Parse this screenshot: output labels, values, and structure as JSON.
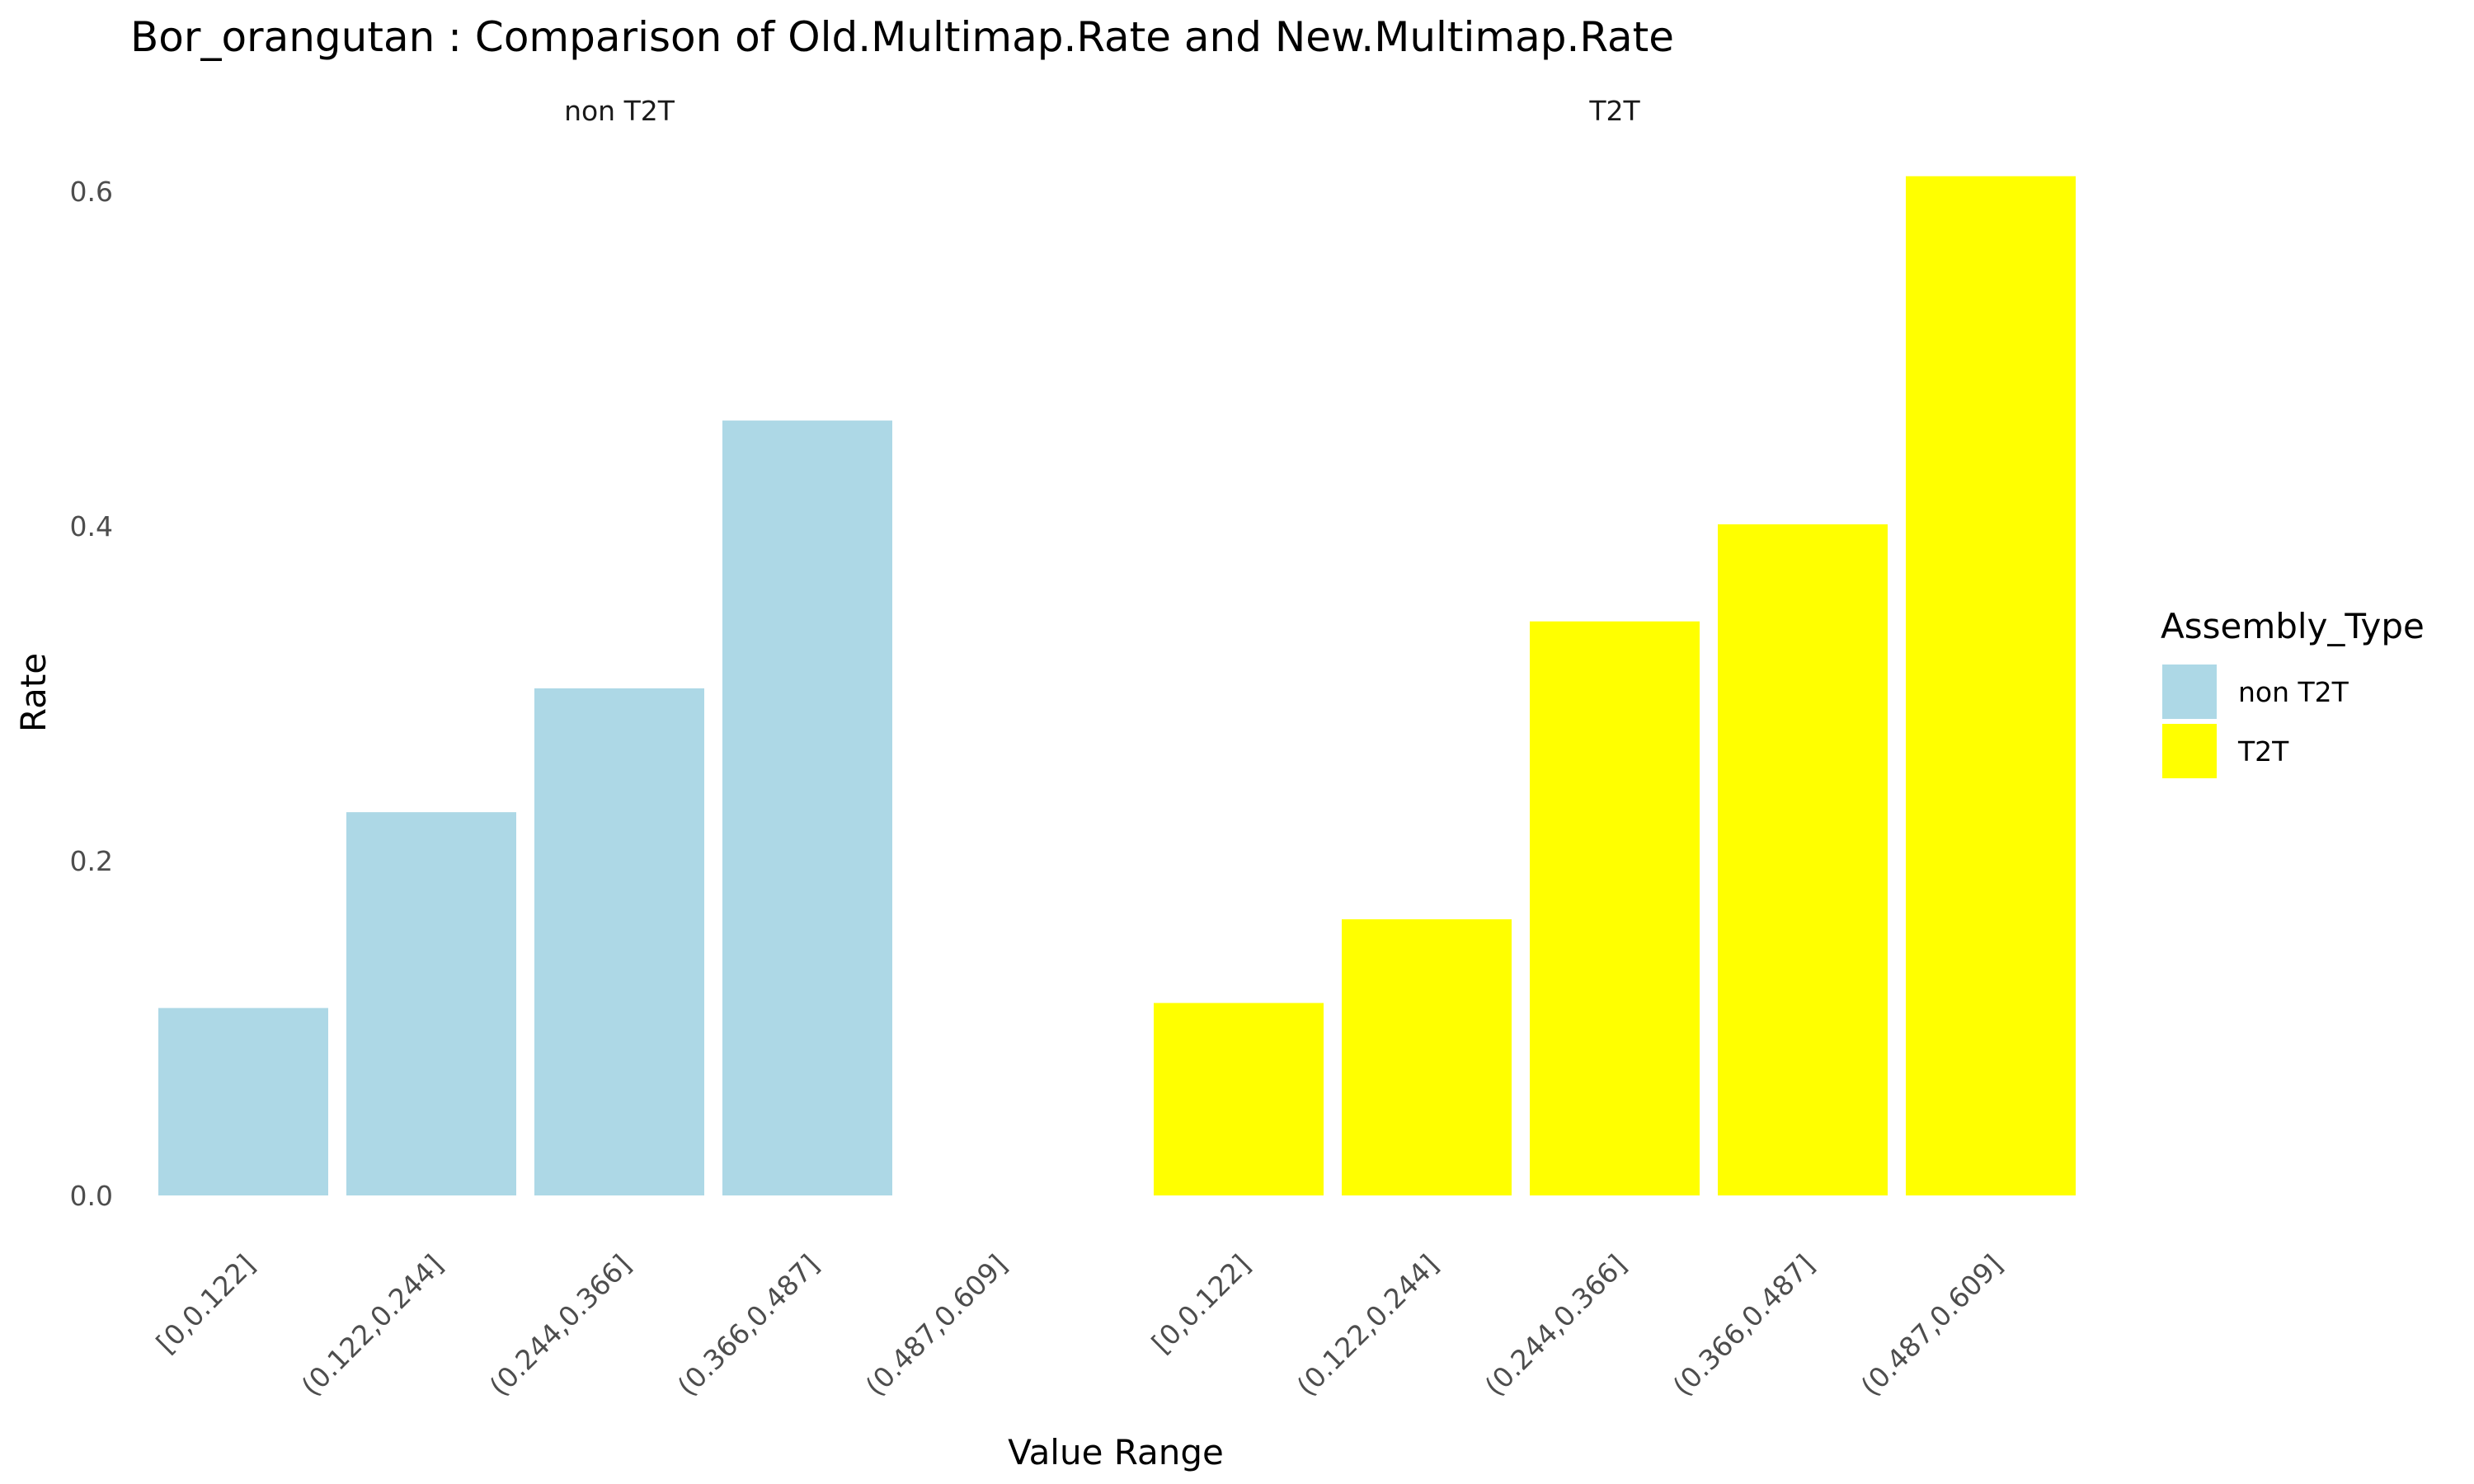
{
  "chart_data": {
    "type": "bar",
    "title": "Bor_orangutan : Comparison of Old.Multimap.Rate and New.Multimap.Rate",
    "xlabel": "Value Range",
    "ylabel": "Rate",
    "ylim": [
      0,
      0.62
    ],
    "yticks": [
      0.0,
      0.2,
      0.4,
      0.6
    ],
    "ytick_labels": [
      "0.0",
      "0.2",
      "0.4",
      "0.6"
    ],
    "categories": [
      "[0,0.122]",
      "(0.122,0.244]",
      "(0.244,0.366]",
      "(0.366,0.487]",
      "(0.487,0.609]"
    ],
    "grid": false,
    "legend": {
      "title": "Assembly_Type",
      "placement": "right",
      "entries": [
        {
          "label": "non T2T",
          "color": "#ADD8E6"
        },
        {
          "label": "T2T",
          "color": "#FFFF00"
        }
      ]
    },
    "facets": [
      {
        "label": "non T2T",
        "color": "#ADD8E6",
        "values": [
          0.112,
          0.229,
          0.303,
          0.463,
          null
        ]
      },
      {
        "label": "T2T",
        "color": "#FFFF00",
        "values": [
          0.115,
          0.165,
          0.343,
          0.401,
          0.609
        ]
      }
    ]
  }
}
